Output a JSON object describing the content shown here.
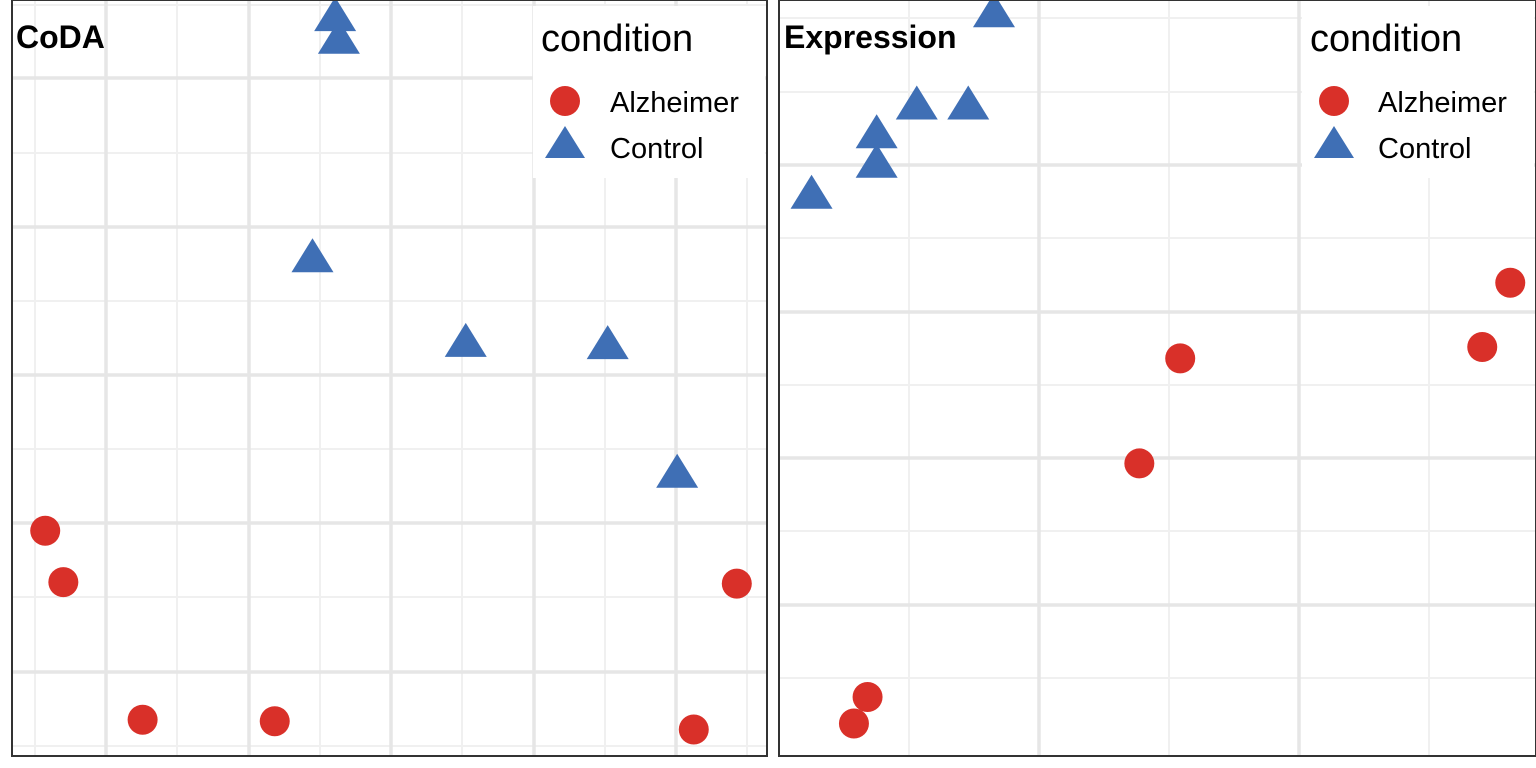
{
  "legend": {
    "title": "condition",
    "entries": [
      {
        "label": "Alzheimer",
        "shape": "circle",
        "color": "#d93029"
      },
      {
        "label": "Control",
        "shape": "triangle",
        "color": "#3f6fb5"
      }
    ]
  },
  "chart_data": [
    {
      "type": "scatter",
      "title": "CoDA",
      "xlabel": "",
      "ylabel": "",
      "grid": true,
      "legend_position": "top-right",
      "xlim": [
        0,
        100
      ],
      "ylim": [
        0,
        100
      ],
      "series": [
        {
          "name": "Alzheimer",
          "color": "#d93029",
          "marker": "circle",
          "points": [
            [
              4.4,
              29.8
            ],
            [
              6.8,
              23.0
            ],
            [
              17.3,
              4.8
            ],
            [
              34.8,
              4.6
            ],
            [
              90.3,
              3.5
            ],
            [
              96.0,
              22.8
            ]
          ]
        },
        {
          "name": "Control",
          "color": "#3f6fb5",
          "marker": "triangle",
          "points": [
            [
              42.8,
              97.6
            ],
            [
              43.3,
              94.6
            ],
            [
              39.8,
              65.7
            ],
            [
              60.1,
              54.5
            ],
            [
              78.9,
              54.2
            ],
            [
              88.1,
              37.2
            ]
          ]
        }
      ]
    },
    {
      "type": "scatter",
      "title": "Expression",
      "xlabel": "",
      "ylabel": "",
      "grid": true,
      "legend_position": "top-right",
      "xlim": [
        0,
        100
      ],
      "ylim": [
        0,
        100
      ],
      "series": [
        {
          "name": "Alzheimer",
          "color": "#d93029",
          "marker": "circle",
          "points": [
            [
              11.7,
              7.8
            ],
            [
              9.9,
              4.3
            ],
            [
              47.6,
              38.7
            ],
            [
              53.0,
              52.6
            ],
            [
              92.9,
              54.1
            ],
            [
              96.6,
              62.6
            ]
          ]
        },
        {
          "name": "Control",
          "color": "#3f6fb5",
          "marker": "triangle",
          "points": [
            [
              28.4,
              98.1
            ],
            [
              4.3,
              74.1
            ],
            [
              12.9,
              78.2
            ],
            [
              12.9,
              82.1
            ],
            [
              18.2,
              85.9
            ],
            [
              25.0,
              85.9
            ]
          ]
        }
      ]
    }
  ]
}
